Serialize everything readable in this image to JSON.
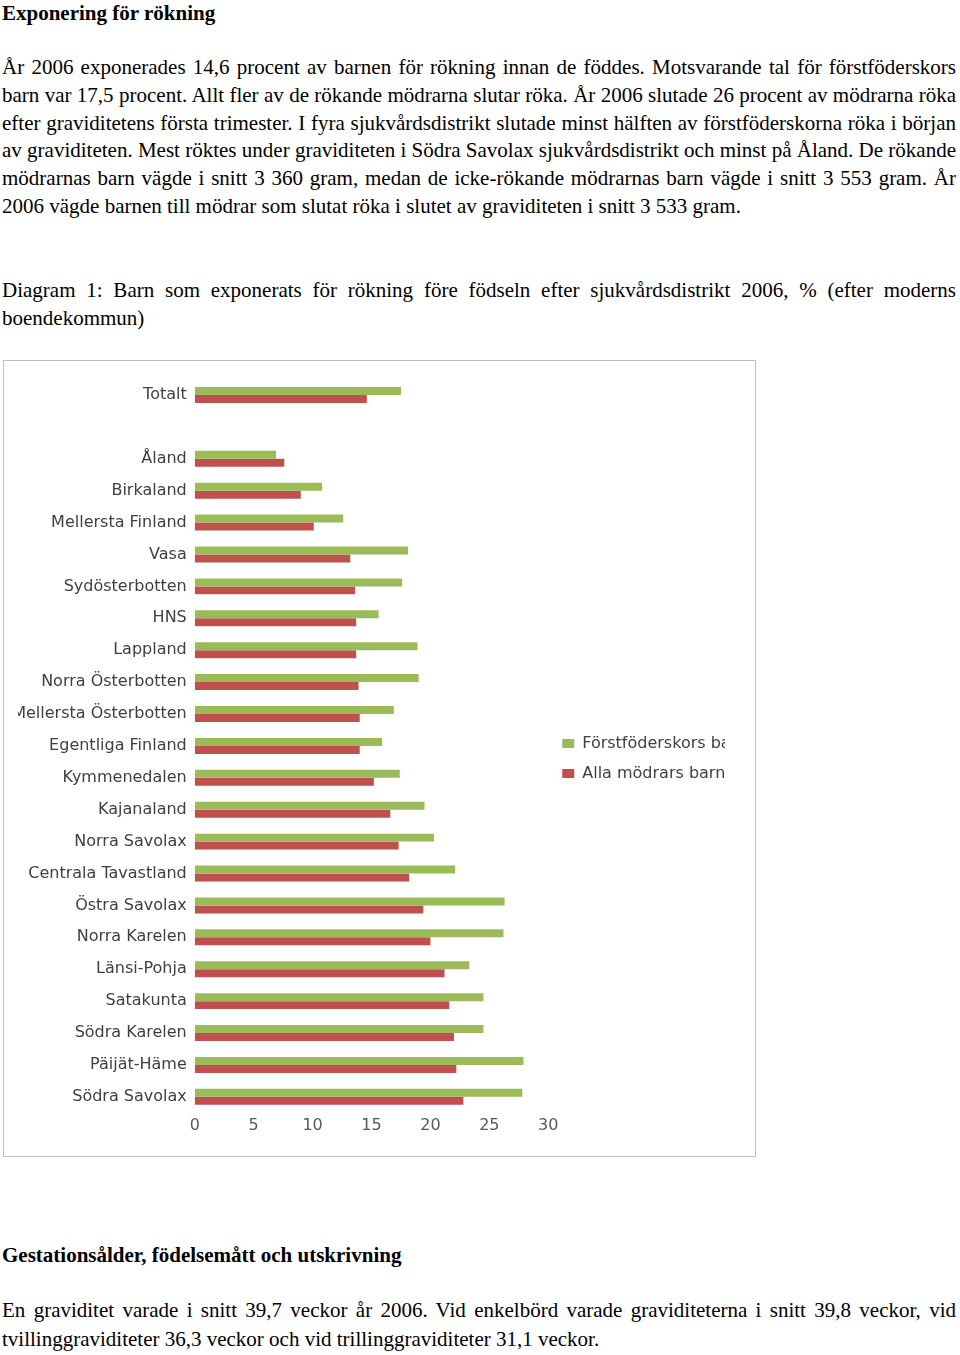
{
  "document": {
    "heading": "Exponering för rökning",
    "paragraph": "År 2006 exponerades 14,6 procent av barnen för rökning innan de föddes. Motsvarande tal för förstföderskors barn var 17,5 procent. Allt fler av de rökande mödrarna slutar röka. År 2006 slutade 26 procent av mödrarna röka efter graviditetens första trimester. I fyra sjukvårdsdistrikt slutade minst hälften av förstföderskorna röka i början av graviditeten. Mest röktes under graviditeten i Södra Savolax sjukvårdsdistrikt och minst på Åland. De rökande mödrarnas barn vägde i snitt 3 360 gram, medan de icke-rökande mödrarnas barn vägde i snitt 3 553 gram. År 2006 vägde barnen till mödrar som slutat röka i slutet av graviditeten i snitt 3 533 gram.",
    "chart_caption": "Diagram 1: Barn som exponerats för rökning före födseln efter sjukvårdsdistrikt 2006, % (efter moderns boendekommun)",
    "heading2": "Gestationsålder, födelsemått och utskrivning",
    "paragraph2": "En graviditet varade i snitt 39,7 veckor år 2006. Vid enkelbörd varade graviditeterna i snitt 39,8 veckor, vid tvillinggraviditeter 36,3 veckor och vid trillinggraviditeter 31,1 veckor."
  },
  "chart_data": {
    "type": "bar",
    "orientation": "horizontal",
    "categories": [
      "Totalt",
      null,
      "Åland",
      "Birkaland",
      "Mellersta Finland",
      "Vasa",
      "Sydösterbotten",
      "HNS",
      "Lappland",
      "Norra Österbotten",
      "Mellersta Österbotten",
      "Egentliga Finland",
      "Kymmenedalen",
      "Kajanaland",
      "Norra Savolax",
      "Centrala Tavastland",
      "Östra Savolax",
      "Norra Karelen",
      "Länsi-Pohja",
      "Satakunta",
      "Södra Karelen",
      "Päijät-Häme",
      "Södra Savolax"
    ],
    "series": [
      {
        "name": "Förstföderskors barn",
        "color": "#9bbb59",
        "values": [
          17.5,
          null,
          6.9,
          10.8,
          12.6,
          18.1,
          17.6,
          15.6,
          18.9,
          19.0,
          16.9,
          15.9,
          17.4,
          19.5,
          20.3,
          22.1,
          26.3,
          26.2,
          23.3,
          24.5,
          24.5,
          27.9,
          27.8
        ]
      },
      {
        "name": "Alla mödrars barn",
        "color": "#c0504d",
        "values": [
          14.6,
          null,
          7.6,
          9.0,
          10.1,
          13.2,
          13.6,
          13.7,
          13.7,
          13.9,
          14.0,
          14.0,
          15.2,
          16.6,
          17.3,
          18.2,
          19.4,
          20.0,
          21.2,
          21.6,
          22.0,
          22.2,
          22.8
        ]
      }
    ],
    "xlim": [
      0,
      30
    ],
    "xticks": [
      0,
      5,
      10,
      15,
      20,
      25,
      30
    ],
    "grid": false,
    "legend": "right"
  }
}
